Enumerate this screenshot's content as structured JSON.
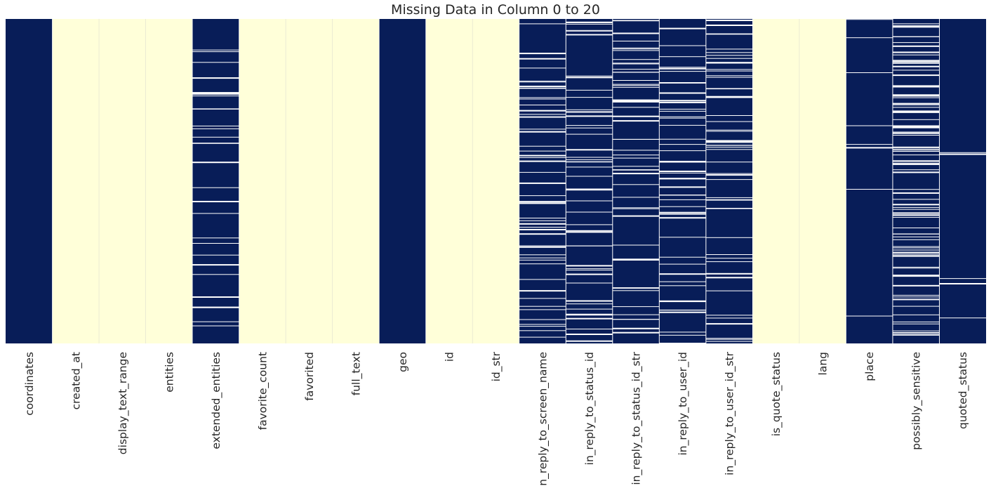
{
  "chart_data": {
    "type": "heatmap",
    "title": "Missing Data in Column 0 to 20",
    "xlabel": "",
    "ylabel": "",
    "categories": [
      "coordinates",
      "created_at",
      "display_text_range",
      "entities",
      "extended_entities",
      "favorite_count",
      "favorited",
      "full_text",
      "geo",
      "id",
      "id_str",
      "in_reply_to_screen_name",
      "in_reply_to_status_id",
      "in_reply_to_status_id_str",
      "in_reply_to_user_id",
      "in_reply_to_user_id_str",
      "is_quote_status",
      "lang",
      "place",
      "possibly_sensitive",
      "quoted_status"
    ],
    "series": [
      {
        "values": [
          1.0,
          0.0,
          0.0,
          0.0,
          0.88,
          0.0,
          0.0,
          0.0,
          1.0,
          0.0,
          0.0,
          0.8,
          0.8,
          0.8,
          0.8,
          0.8,
          0.0,
          0.0,
          0.97,
          0.65,
          0.98
        ]
      }
    ],
    "colormap": "YlGnBu",
    "colors": {
      "missing": "#081d58",
      "present": "#ffffd9",
      "row_gap": "#ffffff"
    },
    "y_ticks": "hidden",
    "grid": false,
    "legend": "none"
  }
}
